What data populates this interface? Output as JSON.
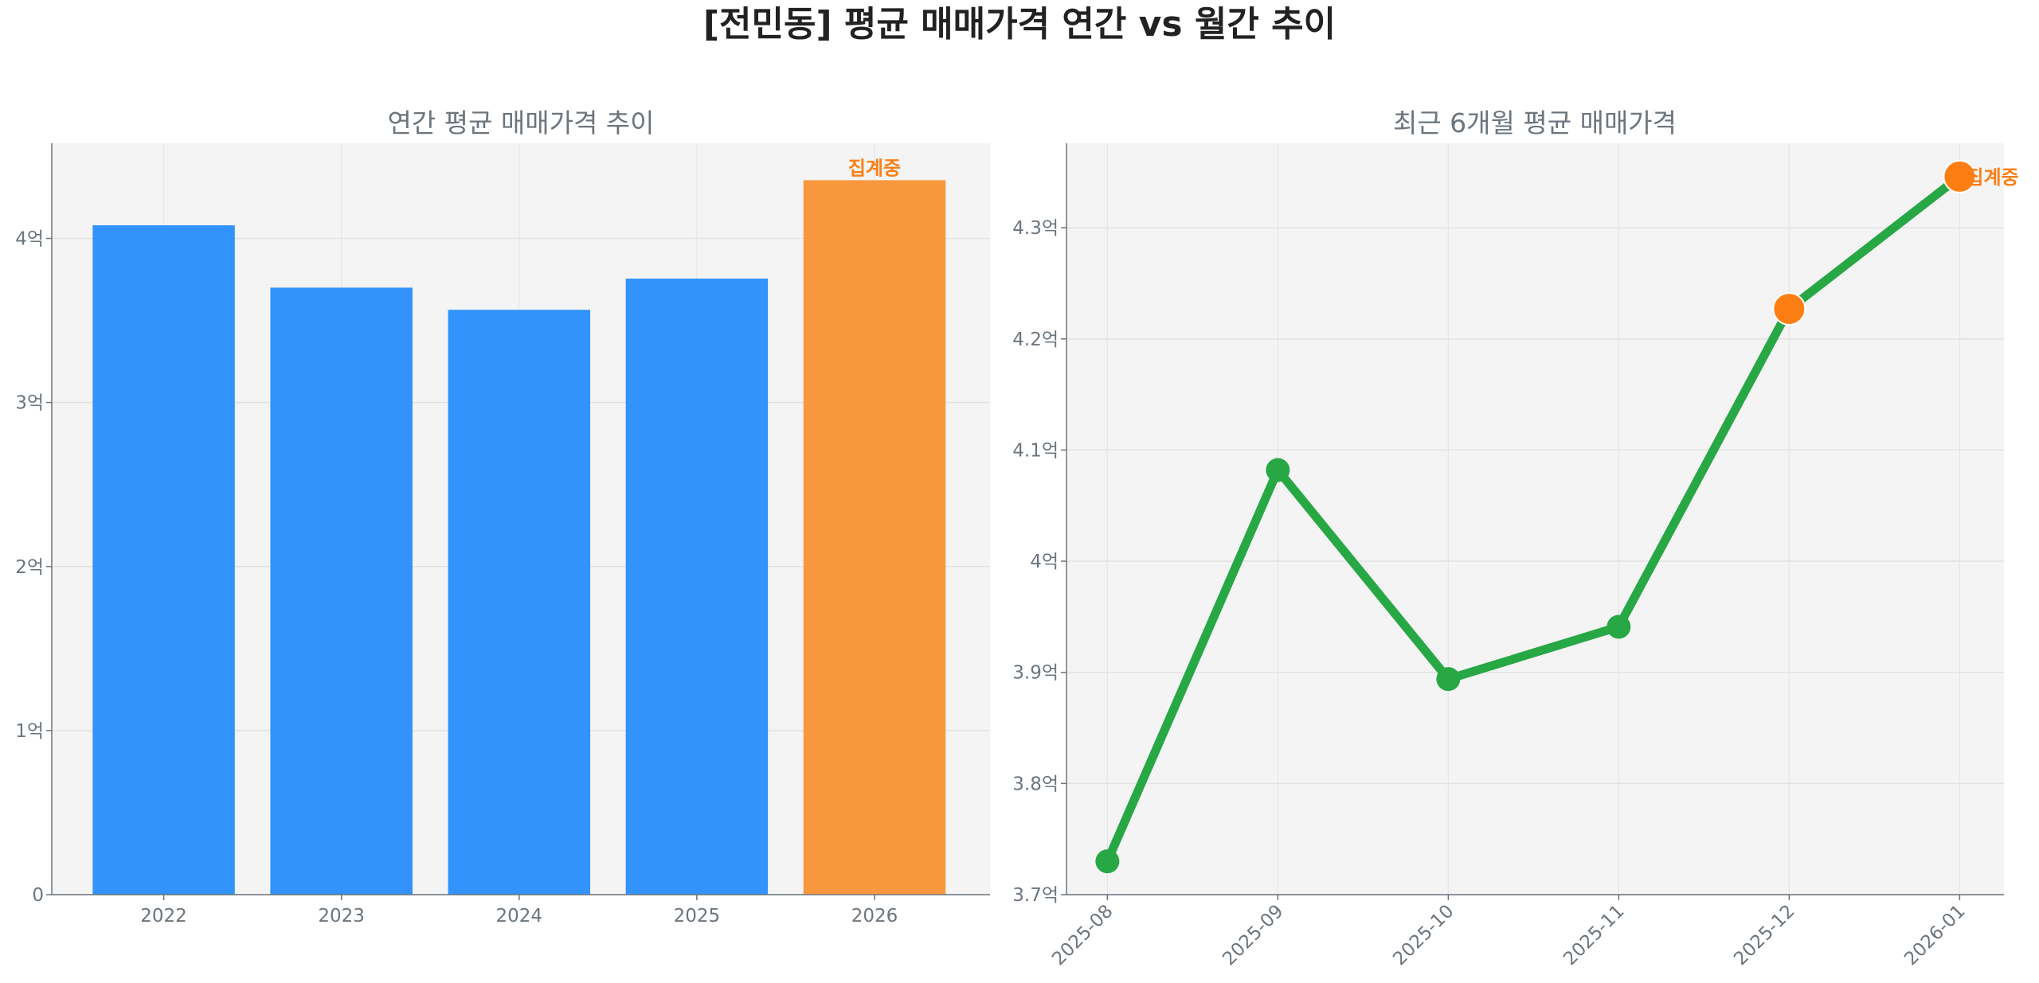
{
  "title": "[전민동] 평균 매매가격 연간 vs 월간 추이",
  "colors": {
    "bar": "#3193fb",
    "bar_highlight": "#f9973f",
    "line": "#28a745",
    "marker_highlight": "#fd7f14",
    "annotation": "#fd7e14",
    "axes_bg": "#f4f4f4"
  },
  "chart_data": [
    {
      "type": "bar",
      "title": "연간 평균 매매가격 추이",
      "categories": [
        "2022",
        "2023",
        "2024",
        "2025",
        "2026"
      ],
      "values": [
        4.08,
        3.7,
        3.565,
        3.755,
        4.355
      ],
      "highlight_index": 4,
      "annotation": "집계중",
      "ylim": [
        0,
        4.58
      ],
      "yticks": [
        0,
        1,
        2,
        3,
        4
      ],
      "ytick_labels": [
        "0",
        "1억",
        "2억",
        "3억",
        "4억"
      ],
      "grid": true
    },
    {
      "type": "line",
      "title": "최근 6개월 평균 매매가격",
      "categories": [
        "2025-08",
        "2025-09",
        "2025-10",
        "2025-11",
        "2025-12",
        "2026-01"
      ],
      "values": [
        3.73,
        4.082,
        3.894,
        3.941,
        4.227,
        4.346
      ],
      "highlight_indices": [
        4,
        5
      ],
      "annotation": "집계중",
      "ylim": [
        3.7,
        4.376
      ],
      "yticks": [
        3.7,
        3.8,
        3.9,
        4.0,
        4.1,
        4.2,
        4.3
      ],
      "ytick_labels": [
        "3.7억",
        "3.8억",
        "3.9억",
        "4억",
        "4.1억",
        "4.2억",
        "4.3억"
      ],
      "grid": true
    }
  ]
}
